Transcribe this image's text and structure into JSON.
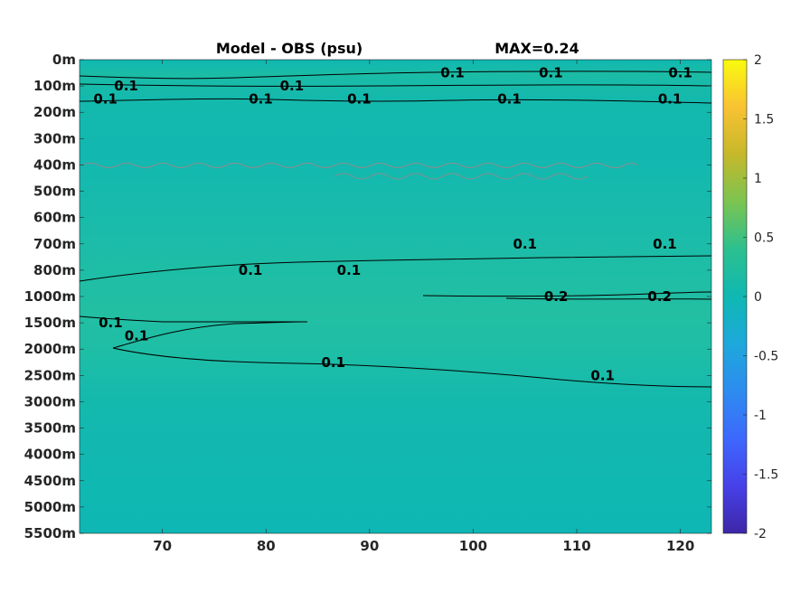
{
  "chart_data": {
    "type": "heatmap",
    "title": "Model - OBS (psu)",
    "annotation": "MAX=0.24",
    "xlabel": "",
    "ylabel": "",
    "xlim": [
      62,
      123
    ],
    "x_ticks": [
      70,
      80,
      90,
      100,
      110,
      120
    ],
    "y_tick_labels": [
      "0m",
      "100m",
      "200m",
      "300m",
      "400m",
      "500m",
      "600m",
      "700m",
      "800m",
      "1000m",
      "1500m",
      "2000m",
      "2500m",
      "3000m",
      "3500m",
      "4000m",
      "4500m",
      "5000m",
      "5500m"
    ],
    "colorbar": {
      "colormap": "parula",
      "clim": [
        -2,
        2
      ],
      "ticks": [
        "2",
        "1.5",
        "1",
        "0.5",
        "0",
        "-0.5",
        "-1",
        "-1.5",
        "-2"
      ]
    },
    "field_description_colors": {
      "background_value_color": "#0fb8b2",
      "positive_band_color": "#22bfa2"
    },
    "contours": [
      {
        "level": 0.1,
        "label": "0.1",
        "depth_labels": [
          "100m",
          "200m",
          "800m",
          "1500m",
          "2000m",
          "2500m"
        ]
      },
      {
        "level": 0.2,
        "label": "0.2",
        "depth_labels": [
          "1000m"
        ]
      }
    ],
    "contour_labels": [
      {
        "text": "0.1",
        "x": 66.5,
        "depth": "100m"
      },
      {
        "text": "0.1",
        "x": 82.5,
        "depth": "100m"
      },
      {
        "text": "0.1",
        "x": 98.0,
        "depth": "50m"
      },
      {
        "text": "0.1",
        "x": 107.5,
        "depth": "50m"
      },
      {
        "text": "0.1",
        "x": 120.0,
        "depth": "50m"
      },
      {
        "text": "0.1",
        "x": 64.5,
        "depth": "150m"
      },
      {
        "text": "0.1",
        "x": 79.5,
        "depth": "150m"
      },
      {
        "text": "0.1",
        "x": 89.0,
        "depth": "150m"
      },
      {
        "text": "0.1",
        "x": 103.5,
        "depth": "150m"
      },
      {
        "text": "0.1",
        "x": 119.0,
        "depth": "150m"
      },
      {
        "text": "0.1",
        "x": 78.5,
        "depth": "800m"
      },
      {
        "text": "0.1",
        "x": 88.0,
        "depth": "800m"
      },
      {
        "text": "0.1",
        "x": 105.0,
        "depth": "700m"
      },
      {
        "text": "0.1",
        "x": 118.5,
        "depth": "700m"
      },
      {
        "text": "0.2",
        "x": 108.0,
        "depth": "1000m"
      },
      {
        "text": "0.2",
        "x": 118.0,
        "depth": "1000m"
      },
      {
        "text": "0.1",
        "x": 65.0,
        "depth": "1500m"
      },
      {
        "text": "0.1",
        "x": 67.5,
        "depth": "1750m"
      },
      {
        "text": "0.1",
        "x": 86.5,
        "depth": "2250m"
      },
      {
        "text": "0.1",
        "x": 112.5,
        "depth": "2500m"
      }
    ]
  }
}
